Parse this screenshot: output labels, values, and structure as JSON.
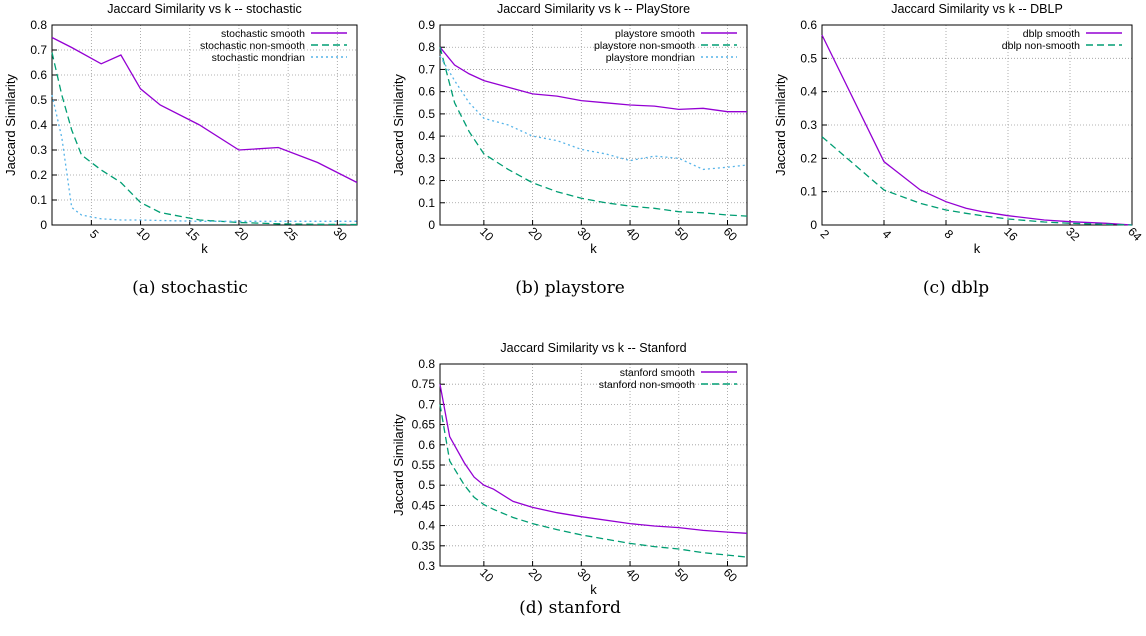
{
  "chart_data": [
    {
      "id": "a",
      "type": "line",
      "title": "Jaccard Similarity vs k -- stochastic",
      "xlabel": "k",
      "ylabel": "Jaccard Similarity",
      "caption": "(a)  stochastic",
      "xlim": [
        1,
        32
      ],
      "ylim": [
        0,
        0.8
      ],
      "xscale": "linear",
      "xticks": [
        5,
        10,
        15,
        20,
        25,
        30
      ],
      "xtick_labels": [
        "5",
        "10",
        "15",
        "20",
        "25",
        "30"
      ],
      "yticks": [
        0,
        0.1,
        0.2,
        0.3,
        0.4,
        0.5,
        0.6,
        0.7,
        0.8
      ],
      "ytick_labels": [
        "0",
        "0.1",
        "0.2",
        "0.3",
        "0.4",
        "0.5",
        "0.6",
        "0.7",
        "0.8"
      ],
      "grid": true,
      "legend_position": "top-right",
      "series": [
        {
          "name": "stochastic smooth",
          "color": "#9400d3",
          "dash": "solid",
          "x": [
            1,
            3,
            6,
            8,
            10,
            12,
            16,
            20,
            24,
            28,
            32
          ],
          "y": [
            0.75,
            0.71,
            0.645,
            0.68,
            0.545,
            0.48,
            0.4,
            0.3,
            0.31,
            0.25,
            0.17
          ]
        },
        {
          "name": "stochastic non-smooth",
          "color": "#009e73",
          "dash": "dashed",
          "x": [
            1,
            2,
            3,
            4,
            6,
            8,
            10,
            12,
            16,
            20,
            24,
            28,
            32
          ],
          "y": [
            0.69,
            0.52,
            0.38,
            0.28,
            0.22,
            0.17,
            0.09,
            0.05,
            0.02,
            0.01,
            0.005,
            0.003,
            0.002
          ]
        },
        {
          "name": "stochastic mondrian",
          "color": "#56b4e9",
          "dash": "dotted",
          "x": [
            1,
            2,
            3,
            4,
            6,
            8,
            10,
            12,
            16,
            20,
            24,
            28,
            32
          ],
          "y": [
            0.52,
            0.35,
            0.07,
            0.04,
            0.025,
            0.02,
            0.02,
            0.018,
            0.015,
            0.015,
            0.015,
            0.015,
            0.015
          ]
        }
      ]
    },
    {
      "id": "b",
      "type": "line",
      "title": "Jaccard Similarity vs k -- PlayStore",
      "xlabel": "k",
      "ylabel": "Jaccard Similarity",
      "caption": "(b)  playstore",
      "xlim": [
        1,
        64
      ],
      "ylim": [
        0,
        0.9
      ],
      "xscale": "linear",
      "xticks": [
        10,
        20,
        30,
        40,
        50,
        60
      ],
      "xtick_labels": [
        "10",
        "20",
        "30",
        "40",
        "50",
        "60"
      ],
      "yticks": [
        0,
        0.1,
        0.2,
        0.3,
        0.4,
        0.5,
        0.6,
        0.7,
        0.8,
        0.9
      ],
      "ytick_labels": [
        "0",
        "0.1",
        "0.2",
        "0.3",
        "0.4",
        "0.5",
        "0.6",
        "0.7",
        "0.8",
        "0.9"
      ],
      "grid": true,
      "legend_position": "top-right",
      "series": [
        {
          "name": "playstore smooth",
          "color": "#9400d3",
          "dash": "solid",
          "x": [
            1,
            4,
            7,
            10,
            15,
            20,
            25,
            30,
            35,
            40,
            45,
            50,
            55,
            60,
            64
          ],
          "y": [
            0.8,
            0.72,
            0.68,
            0.65,
            0.62,
            0.59,
            0.58,
            0.56,
            0.55,
            0.54,
            0.535,
            0.52,
            0.525,
            0.51,
            0.51
          ]
        },
        {
          "name": "playstore non-smooth",
          "color": "#009e73",
          "dash": "dashed",
          "x": [
            1,
            4,
            7,
            10,
            15,
            20,
            25,
            30,
            35,
            40,
            45,
            50,
            55,
            60,
            64
          ],
          "y": [
            0.8,
            0.55,
            0.42,
            0.32,
            0.25,
            0.19,
            0.15,
            0.12,
            0.1,
            0.085,
            0.075,
            0.06,
            0.055,
            0.045,
            0.04
          ]
        },
        {
          "name": "playstore mondrian",
          "color": "#56b4e9",
          "dash": "dotted",
          "x": [
            1,
            4,
            7,
            10,
            15,
            20,
            25,
            30,
            35,
            40,
            45,
            50,
            55,
            60,
            64
          ],
          "y": [
            0.76,
            0.65,
            0.55,
            0.48,
            0.45,
            0.4,
            0.38,
            0.34,
            0.32,
            0.29,
            0.31,
            0.3,
            0.25,
            0.26,
            0.27
          ]
        }
      ]
    },
    {
      "id": "c",
      "type": "line",
      "title": "Jaccard Similarity vs k -- DBLP",
      "xlabel": "k",
      "ylabel": "Jaccard Similarity",
      "caption": "(c)  dblp",
      "xlim": [
        2,
        64
      ],
      "ylim": [
        0,
        0.6
      ],
      "xscale": "log2",
      "xticks": [
        2,
        4,
        8,
        16,
        32,
        64
      ],
      "xtick_labels": [
        "2",
        "4",
        "8",
        "16",
        "32",
        "64"
      ],
      "yticks": [
        0,
        0.1,
        0.2,
        0.3,
        0.4,
        0.5,
        0.6
      ],
      "ytick_labels": [
        "0",
        "0.1",
        "0.2",
        "0.3",
        "0.4",
        "0.5",
        "0.6"
      ],
      "grid": true,
      "legend_position": "top-right",
      "series": [
        {
          "name": "dblp smooth",
          "color": "#9400d3",
          "dash": "solid",
          "x": [
            2,
            4,
            6,
            8,
            10,
            12,
            16,
            24,
            32,
            48,
            64
          ],
          "y": [
            0.57,
            0.19,
            0.105,
            0.07,
            0.05,
            0.04,
            0.028,
            0.015,
            0.01,
            0.005,
            0.0
          ]
        },
        {
          "name": "dblp non-smooth",
          "color": "#009e73",
          "dash": "dashed",
          "x": [
            2,
            4,
            6,
            8,
            10,
            12,
            16,
            24,
            32,
            48,
            64
          ],
          "y": [
            0.265,
            0.105,
            0.065,
            0.045,
            0.035,
            0.028,
            0.018,
            0.009,
            0.005,
            0.002,
            0.0
          ]
        }
      ]
    },
    {
      "id": "d",
      "type": "line",
      "title": "Jaccard Similarity vs k -- Stanford",
      "xlabel": "k",
      "ylabel": "Jaccard Similarity",
      "caption": "(d)  stanford",
      "xlim": [
        1,
        64
      ],
      "ylim": [
        0.3,
        0.8
      ],
      "xscale": "linear",
      "xticks": [
        10,
        20,
        30,
        40,
        50,
        60
      ],
      "xtick_labels": [
        "10",
        "20",
        "30",
        "40",
        "50",
        "60"
      ],
      "yticks": [
        0.3,
        0.35,
        0.4,
        0.45,
        0.5,
        0.55,
        0.6,
        0.65,
        0.7,
        0.75,
        0.8
      ],
      "ytick_labels": [
        "0.3",
        "0.35",
        "0.4",
        "0.45",
        "0.5",
        "0.55",
        "0.6",
        "0.65",
        "0.7",
        "0.75",
        "0.8"
      ],
      "grid": true,
      "legend_position": "top-right",
      "series": [
        {
          "name": "stanford smooth",
          "color": "#9400d3",
          "dash": "solid",
          "x": [
            1,
            3,
            6,
            8,
            10,
            12,
            16,
            20,
            25,
            30,
            40,
            45,
            50,
            55,
            60,
            64
          ],
          "y": [
            0.75,
            0.62,
            0.555,
            0.52,
            0.5,
            0.49,
            0.46,
            0.445,
            0.432,
            0.422,
            0.405,
            0.399,
            0.395,
            0.388,
            0.384,
            0.381
          ]
        },
        {
          "name": "stanford non-smooth",
          "color": "#009e73",
          "dash": "dashed",
          "x": [
            1,
            3,
            6,
            8,
            10,
            12,
            16,
            20,
            25,
            30,
            40,
            45,
            50,
            55,
            60,
            64
          ],
          "y": [
            0.7,
            0.56,
            0.5,
            0.47,
            0.452,
            0.44,
            0.42,
            0.405,
            0.39,
            0.377,
            0.356,
            0.348,
            0.342,
            0.333,
            0.327,
            0.322
          ]
        }
      ]
    }
  ]
}
